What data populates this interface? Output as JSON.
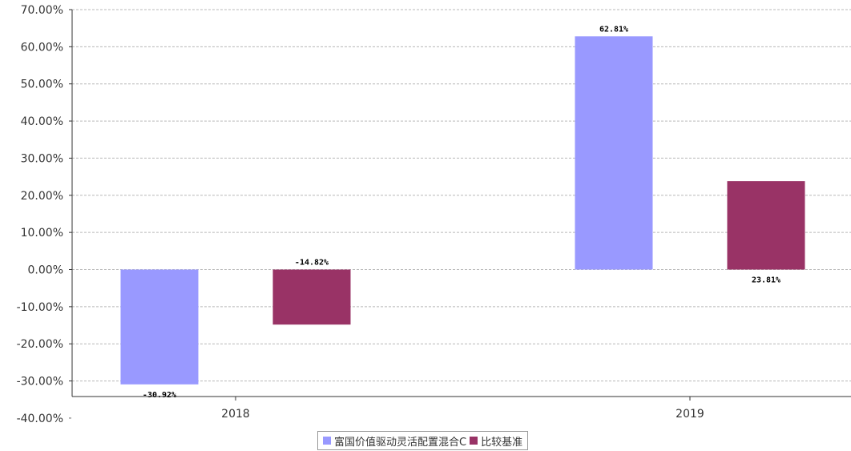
{
  "chart_data": {
    "type": "bar",
    "categories": [
      "2018",
      "2019"
    ],
    "series": [
      {
        "name": "富国价值驱动灵活配置混合C",
        "color": "#9999ff",
        "values": [
          -30.92,
          62.81
        ],
        "labels": [
          "-30.92%",
          "62.81%"
        ]
      },
      {
        "name": "比较基准",
        "color": "#993366",
        "values": [
          -14.82,
          23.81
        ],
        "labels": [
          "-14.82%",
          "23.81%"
        ]
      }
    ],
    "yticks": [
      "70.00%",
      "60.00%",
      "50.00%",
      "40.00%",
      "30.00%",
      "20.00%",
      "10.00%",
      "0.00%",
      "-10.00%",
      "-20.00%",
      "-30.00%",
      "-40.00%"
    ],
    "ylim": [
      -40,
      70
    ],
    "ylabel": "",
    "xlabel": "",
    "grid": true,
    "legend_position": "bottom-center"
  }
}
